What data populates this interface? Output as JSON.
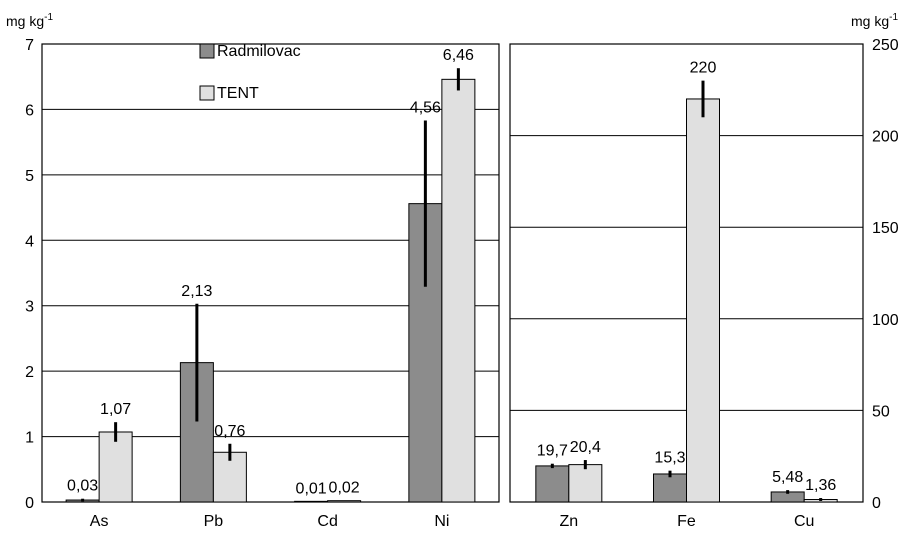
{
  "legend": {
    "series": [
      {
        "name": "Radmilovac",
        "color": "#8c8c8c"
      },
      {
        "name": "TENT",
        "color": "#e0e0e0"
      }
    ]
  },
  "chart_data": [
    {
      "type": "bar",
      "unit_label": "mg kg",
      "unit_exponent": "-1",
      "ylim": [
        0,
        7
      ],
      "yticks": [
        "0",
        "1",
        "2",
        "3",
        "4",
        "5",
        "6",
        "7"
      ],
      "categories": [
        "As",
        "Pb",
        "Cd",
        "Ni"
      ],
      "grid": true,
      "legend_position": "top-center",
      "series": [
        {
          "name": "Radmilovac",
          "values": [
            0.03,
            2.13,
            0.01,
            4.56
          ],
          "labels": [
            "0,03",
            "2,13",
            "0,01",
            "4,56"
          ],
          "errors": [
            0.02,
            0.9,
            0,
            1.27
          ]
        },
        {
          "name": "TENT",
          "values": [
            1.07,
            0.76,
            0.02,
            6.46
          ],
          "labels": [
            "1,07",
            "0,76",
            "0,02",
            "6,46"
          ],
          "errors": [
            0.15,
            0.13,
            0,
            0.17
          ]
        }
      ]
    },
    {
      "type": "bar",
      "unit_label": "mg kg",
      "unit_exponent": "-1",
      "ylim": [
        0,
        250
      ],
      "yticks": [
        "0",
        "50",
        "100",
        "150",
        "200",
        "250"
      ],
      "categories": [
        "Zn",
        "Fe",
        "Cu"
      ],
      "grid": true,
      "series": [
        {
          "name": "Radmilovac",
          "values": [
            19.7,
            15.3,
            5.48
          ],
          "labels": [
            "19,7",
            "15,3",
            "5,48"
          ],
          "errors": [
            1.2,
            1.8,
            1.0
          ]
        },
        {
          "name": "TENT",
          "values": [
            20.4,
            220,
            1.36
          ],
          "labels": [
            "20,4",
            "220",
            "1,36"
          ],
          "errors": [
            2.5,
            10,
            0.8
          ]
        }
      ]
    }
  ]
}
